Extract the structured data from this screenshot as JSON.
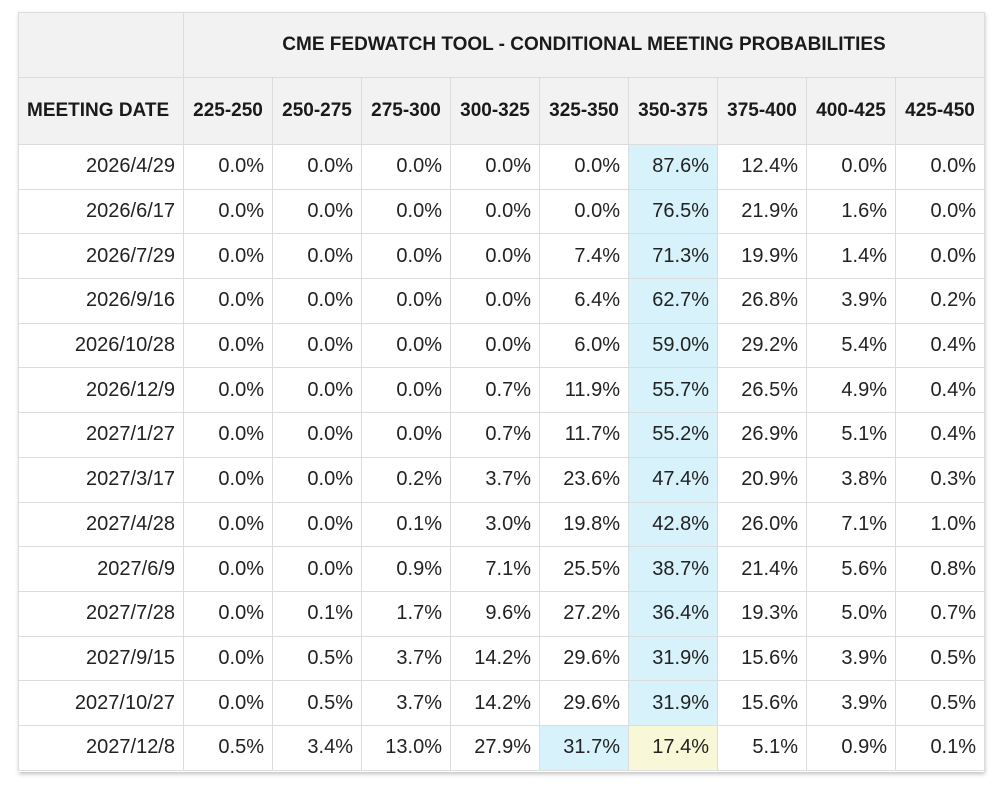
{
  "title": "CME FEDWATCH TOOL - CONDITIONAL MEETING PROBABILITIES",
  "date_header": "MEETING DATE",
  "columns": [
    "225-250",
    "250-275",
    "275-300",
    "300-325",
    "325-350",
    "350-375",
    "375-400",
    "400-425",
    "425-450"
  ],
  "highlight_colors": {
    "blue": "#d7f2fa",
    "yellow": "#f8f8d8"
  },
  "rows": [
    {
      "date": "2026/4/29",
      "values": [
        "0.0%",
        "0.0%",
        "0.0%",
        "0.0%",
        "0.0%",
        "87.6%",
        "12.4%",
        "0.0%",
        "0.0%"
      ],
      "highlight": {
        "5": "blue"
      }
    },
    {
      "date": "2026/6/17",
      "values": [
        "0.0%",
        "0.0%",
        "0.0%",
        "0.0%",
        "0.0%",
        "76.5%",
        "21.9%",
        "1.6%",
        "0.0%"
      ],
      "highlight": {
        "5": "blue"
      }
    },
    {
      "date": "2026/7/29",
      "values": [
        "0.0%",
        "0.0%",
        "0.0%",
        "0.0%",
        "7.4%",
        "71.3%",
        "19.9%",
        "1.4%",
        "0.0%"
      ],
      "highlight": {
        "5": "blue"
      }
    },
    {
      "date": "2026/9/16",
      "values": [
        "0.0%",
        "0.0%",
        "0.0%",
        "0.0%",
        "6.4%",
        "62.7%",
        "26.8%",
        "3.9%",
        "0.2%"
      ],
      "highlight": {
        "5": "blue"
      }
    },
    {
      "date": "2026/10/28",
      "values": [
        "0.0%",
        "0.0%",
        "0.0%",
        "0.0%",
        "6.0%",
        "59.0%",
        "29.2%",
        "5.4%",
        "0.4%"
      ],
      "highlight": {
        "5": "blue"
      }
    },
    {
      "date": "2026/12/9",
      "values": [
        "0.0%",
        "0.0%",
        "0.0%",
        "0.7%",
        "11.9%",
        "55.7%",
        "26.5%",
        "4.9%",
        "0.4%"
      ],
      "highlight": {
        "5": "blue"
      }
    },
    {
      "date": "2027/1/27",
      "values": [
        "0.0%",
        "0.0%",
        "0.0%",
        "0.7%",
        "11.7%",
        "55.2%",
        "26.9%",
        "5.1%",
        "0.4%"
      ],
      "highlight": {
        "5": "blue"
      }
    },
    {
      "date": "2027/3/17",
      "values": [
        "0.0%",
        "0.0%",
        "0.2%",
        "3.7%",
        "23.6%",
        "47.4%",
        "20.9%",
        "3.8%",
        "0.3%"
      ],
      "highlight": {
        "5": "blue"
      }
    },
    {
      "date": "2027/4/28",
      "values": [
        "0.0%",
        "0.0%",
        "0.1%",
        "3.0%",
        "19.8%",
        "42.8%",
        "26.0%",
        "7.1%",
        "1.0%"
      ],
      "highlight": {
        "5": "blue"
      }
    },
    {
      "date": "2027/6/9",
      "values": [
        "0.0%",
        "0.0%",
        "0.9%",
        "7.1%",
        "25.5%",
        "38.7%",
        "21.4%",
        "5.6%",
        "0.8%"
      ],
      "highlight": {
        "5": "blue"
      }
    },
    {
      "date": "2027/7/28",
      "values": [
        "0.0%",
        "0.1%",
        "1.7%",
        "9.6%",
        "27.2%",
        "36.4%",
        "19.3%",
        "5.0%",
        "0.7%"
      ],
      "highlight": {
        "5": "blue"
      }
    },
    {
      "date": "2027/9/15",
      "values": [
        "0.0%",
        "0.5%",
        "3.7%",
        "14.2%",
        "29.6%",
        "31.9%",
        "15.6%",
        "3.9%",
        "0.5%"
      ],
      "highlight": {
        "5": "blue"
      }
    },
    {
      "date": "2027/10/27",
      "values": [
        "0.0%",
        "0.5%",
        "3.7%",
        "14.2%",
        "29.6%",
        "31.9%",
        "15.6%",
        "3.9%",
        "0.5%"
      ],
      "highlight": {
        "5": "blue"
      }
    },
    {
      "date": "2027/12/8",
      "values": [
        "0.5%",
        "3.4%",
        "13.0%",
        "27.9%",
        "31.7%",
        "17.4%",
        "5.1%",
        "0.9%",
        "0.1%"
      ],
      "highlight": {
        "4": "blue",
        "5": "yellow"
      }
    }
  ]
}
